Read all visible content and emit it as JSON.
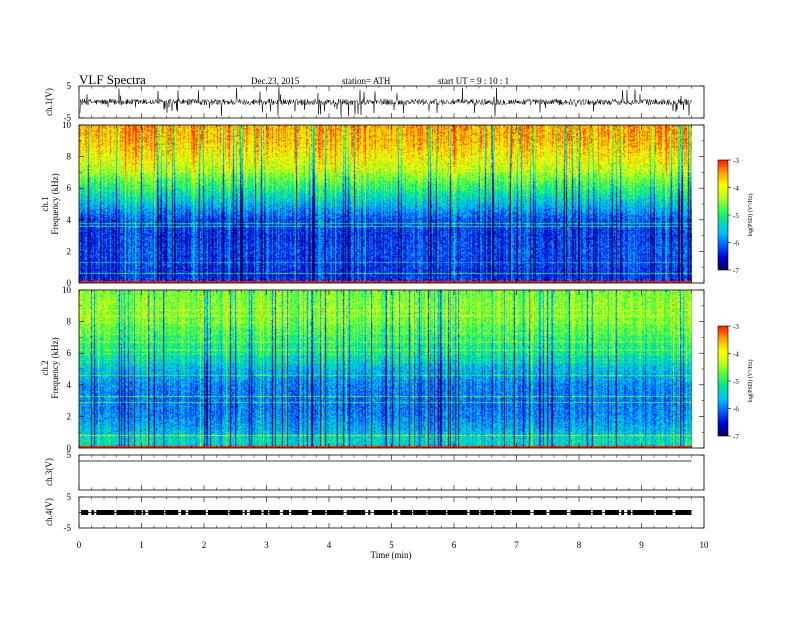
{
  "header": {
    "title": "VLF  Spectra",
    "date": "Dec.23, 2015",
    "station": "station= ATH",
    "start": "start  UT  =   9  : 10 : 1"
  },
  "chart_data": [
    {
      "type": "line",
      "panel": "ch1-waveform",
      "ylabel": "ch.1(V)",
      "ylim": [
        -5,
        5
      ],
      "yticks": [
        "5",
        "-5"
      ],
      "baseline": 0,
      "noise_level_v": 0.6,
      "color": "#000000"
    },
    {
      "type": "heatmap",
      "panel": "ch1-spectrogram",
      "ylabel": "ch.1\nFrequency  (kHz)",
      "ylim": [
        0,
        10
      ],
      "yticks": [
        "0",
        "2",
        "4",
        "6",
        "8",
        "10"
      ],
      "colorbar": {
        "label": "log(PSD) (V²/Hz)",
        "range": [
          -7,
          -3
        ],
        "ticks": [
          "-3",
          "-4",
          "-5",
          "-6",
          "-7"
        ]
      },
      "profile_log_psd_by_freq_khz": [
        [
          0,
          -6.2
        ],
        [
          0.5,
          -6.4
        ],
        [
          1,
          -6.3
        ],
        [
          2,
          -6.2
        ],
        [
          3,
          -6.3
        ],
        [
          4,
          -6.2
        ],
        [
          5,
          -5.6
        ],
        [
          6,
          -5.0
        ],
        [
          7,
          -4.4
        ],
        [
          8,
          -3.9
        ],
        [
          9,
          -3.6
        ],
        [
          10,
          -3.5
        ]
      ]
    },
    {
      "type": "heatmap",
      "panel": "ch2-spectrogram",
      "ylabel": "ch.2\nFrequency  (kHz)",
      "ylim": [
        0,
        10
      ],
      "yticks": [
        "0",
        "2",
        "4",
        "6",
        "8",
        "10"
      ],
      "colorbar": {
        "label": "log(PSD) (V²/Hz)",
        "range": [
          -7,
          -3
        ],
        "ticks": [
          "-3",
          "-4",
          "-5",
          "-6",
          "-7"
        ]
      },
      "profile_log_psd_by_freq_khz": [
        [
          0,
          -5.5
        ],
        [
          0.5,
          -5.3
        ],
        [
          1,
          -5.6
        ],
        [
          2,
          -5.9
        ],
        [
          3,
          -6.0
        ],
        [
          4,
          -5.9
        ],
        [
          5,
          -5.6
        ],
        [
          6,
          -5.2
        ],
        [
          7,
          -4.9
        ],
        [
          8,
          -4.6
        ],
        [
          9,
          -4.5
        ],
        [
          10,
          -4.6
        ]
      ]
    },
    {
      "type": "line",
      "panel": "ch3-waveform",
      "ylabel": "ch.3(V)",
      "ylim": [
        -5,
        5
      ],
      "yticks": [
        "5"
      ],
      "baseline": 0,
      "color": "#000000"
    },
    {
      "type": "line",
      "panel": "ch4-waveform",
      "ylabel": "ch.4(V)",
      "ylim": [
        -5,
        5
      ],
      "yticks": [
        "5",
        "-5"
      ],
      "baseline": 0,
      "color": "#000000"
    }
  ],
  "xaxis": {
    "label": "Time  (min)",
    "xlim": [
      0,
      10
    ],
    "ticks": [
      "0",
      "1",
      "2",
      "3",
      "4",
      "5",
      "6",
      "7",
      "8",
      "9",
      "10"
    ],
    "data_end_min": 9.8
  },
  "colormap": [
    "#000060",
    "#0000d8",
    "#0060ff",
    "#00c0ff",
    "#00e0a0",
    "#40ff40",
    "#c0ff20",
    "#ffff00",
    "#ffa000",
    "#ff2000",
    "#ffffff"
  ]
}
